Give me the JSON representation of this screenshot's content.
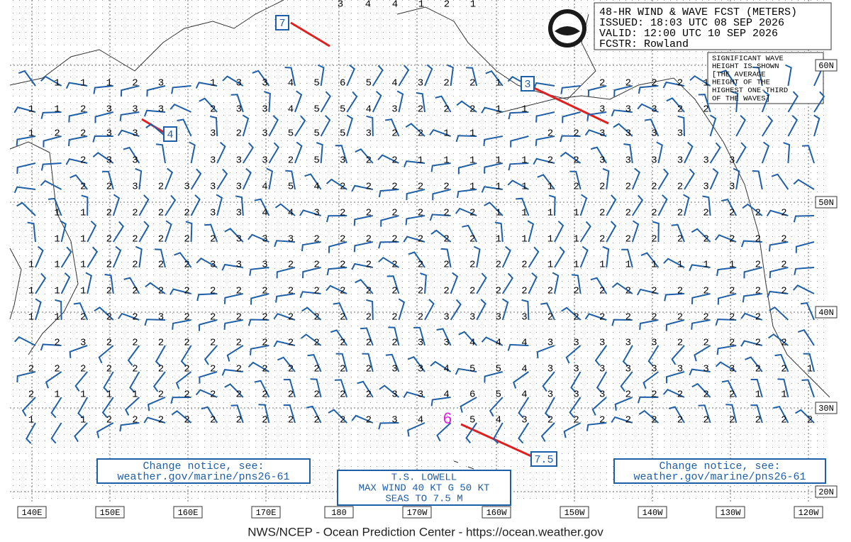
{
  "header": {
    "lines": [
      "48-HR WIND & WAVE FCST (METERS)",
      "ISSUED: 18:03 UTC 08 SEP 2026",
      "VALID:  12:00 UTC 10 SEP 2026",
      "FCSTR:  Rowland"
    ]
  },
  "note": {
    "lines": [
      "SIGNIFICANT WAVE",
      "HEIGHT IS SHOWN",
      "[THE AVERAGE",
      "HEIGHT OF THE",
      "HIGHEST ONE-THIRD",
      "OF THE WAVES]"
    ]
  },
  "logo": "NOAA",
  "callouts": [
    "7",
    "4",
    "3",
    "7.5"
  ],
  "storm_center": "6",
  "notice_left": [
    "Change notice, see:",
    "weather.gov/marine/pns26-61"
  ],
  "notice_right": [
    "Change notice, see:",
    "weather.gov/marine/pns26-61"
  ],
  "storm": [
    "T.S. LOWELL",
    "MAX WIND 40 KT G 50 KT",
    "SEAS TO 7.5 M"
  ],
  "lon_labels": [
    "140E",
    "150E",
    "160E",
    "170E",
    "180",
    "170W",
    "160W",
    "150W",
    "140W",
    "130W",
    "120W"
  ],
  "lat_labels": [
    "60N",
    "50N",
    "40N",
    "30N",
    "20N"
  ],
  "top_row": [
    3,
    4,
    4,
    1,
    2,
    1
  ],
  "wave_grid": [
    [
      null,
      1,
      1,
      1,
      2,
      3,
      null,
      1,
      3,
      3,
      4,
      5,
      6,
      5,
      4,
      3,
      2,
      2,
      1,
      null,
      null,
      null,
      2,
      2,
      2,
      2,
      1,
      null,
      null,
      null,
      null
    ],
    [
      1,
      1,
      2,
      3,
      3,
      3,
      null,
      2,
      3,
      3,
      4,
      5,
      5,
      4,
      3,
      2,
      2,
      2,
      1,
      1,
      null,
      null,
      3,
      3,
      3,
      2,
      2,
      null,
      null,
      null,
      null
    ],
    [
      1,
      2,
      2,
      3,
      3,
      null,
      null,
      3,
      2,
      3,
      5,
      5,
      5,
      3,
      2,
      2,
      1,
      1,
      null,
      null,
      2,
      2,
      3,
      3,
      3,
      3,
      null,
      null,
      null,
      null,
      null
    ],
    [
      null,
      null,
      2,
      3,
      3,
      null,
      null,
      3,
      3,
      3,
      2,
      5,
      3,
      2,
      2,
      1,
      1,
      1,
      1,
      1,
      2,
      2,
      3,
      3,
      3,
      3,
      3,
      3,
      null,
      null,
      null
    ],
    [
      null,
      null,
      2,
      2,
      3,
      2,
      3,
      3,
      3,
      4,
      5,
      4,
      2,
      2,
      2,
      2,
      2,
      1,
      1,
      1,
      1,
      2,
      2,
      2,
      2,
      2,
      3,
      3,
      null,
      null,
      null
    ],
    [
      null,
      1,
      1,
      2,
      2,
      2,
      2,
      3,
      3,
      4,
      4,
      3,
      2,
      2,
      2,
      2,
      2,
      2,
      1,
      1,
      1,
      1,
      2,
      2,
      2,
      2,
      2,
      2,
      2,
      2,
      null
    ],
    [
      null,
      1,
      1,
      2,
      2,
      2,
      2,
      2,
      3,
      3,
      3,
      2,
      2,
      2,
      2,
      2,
      2,
      2,
      1,
      1,
      1,
      1,
      2,
      2,
      2,
      2,
      2,
      2,
      2,
      2,
      null
    ],
    [
      1,
      1,
      1,
      2,
      2,
      2,
      2,
      3,
      3,
      3,
      2,
      2,
      2,
      2,
      2,
      2,
      2,
      2,
      2,
      2,
      1,
      1,
      1,
      1,
      1,
      1,
      1,
      1,
      2,
      2,
      null
    ],
    [
      1,
      1,
      1,
      2,
      2,
      2,
      2,
      2,
      2,
      2,
      2,
      2,
      2,
      2,
      2,
      2,
      2,
      2,
      2,
      2,
      2,
      2,
      2,
      2,
      2,
      2,
      2,
      2,
      2,
      2,
      null
    ],
    [
      1,
      1,
      2,
      2,
      2,
      3,
      2,
      2,
      2,
      2,
      2,
      2,
      2,
      2,
      2,
      2,
      3,
      3,
      3,
      3,
      2,
      2,
      2,
      2,
      2,
      2,
      2,
      2,
      2,
      null,
      null
    ],
    [
      null,
      2,
      3,
      2,
      2,
      2,
      2,
      2,
      2,
      2,
      2,
      2,
      2,
      2,
      2,
      3,
      3,
      4,
      4,
      4,
      3,
      3,
      3,
      3,
      3,
      2,
      2,
      2,
      2,
      2,
      null
    ],
    [
      2,
      2,
      2,
      2,
      2,
      2,
      2,
      2,
      2,
      2,
      2,
      2,
      2,
      2,
      3,
      3,
      4,
      5,
      5,
      4,
      3,
      3,
      3,
      3,
      3,
      3,
      3,
      3,
      2,
      2,
      1
    ],
    [
      2,
      1,
      1,
      1,
      1,
      2,
      2,
      2,
      2,
      2,
      2,
      2,
      2,
      2,
      3,
      3,
      4,
      6,
      5,
      4,
      3,
      3,
      3,
      2,
      2,
      2,
      2,
      2,
      1,
      1,
      null
    ],
    [
      1,
      null,
      1,
      2,
      2,
      2,
      2,
      2,
      2,
      2,
      2,
      2,
      2,
      2,
      3,
      4,
      null,
      5,
      4,
      3,
      2,
      2,
      2,
      2,
      2,
      2,
      2,
      2,
      2,
      2,
      2
    ]
  ],
  "footer": "NWS/NCEP - Ocean Prediction Center - https://ocean.weather.gov"
}
